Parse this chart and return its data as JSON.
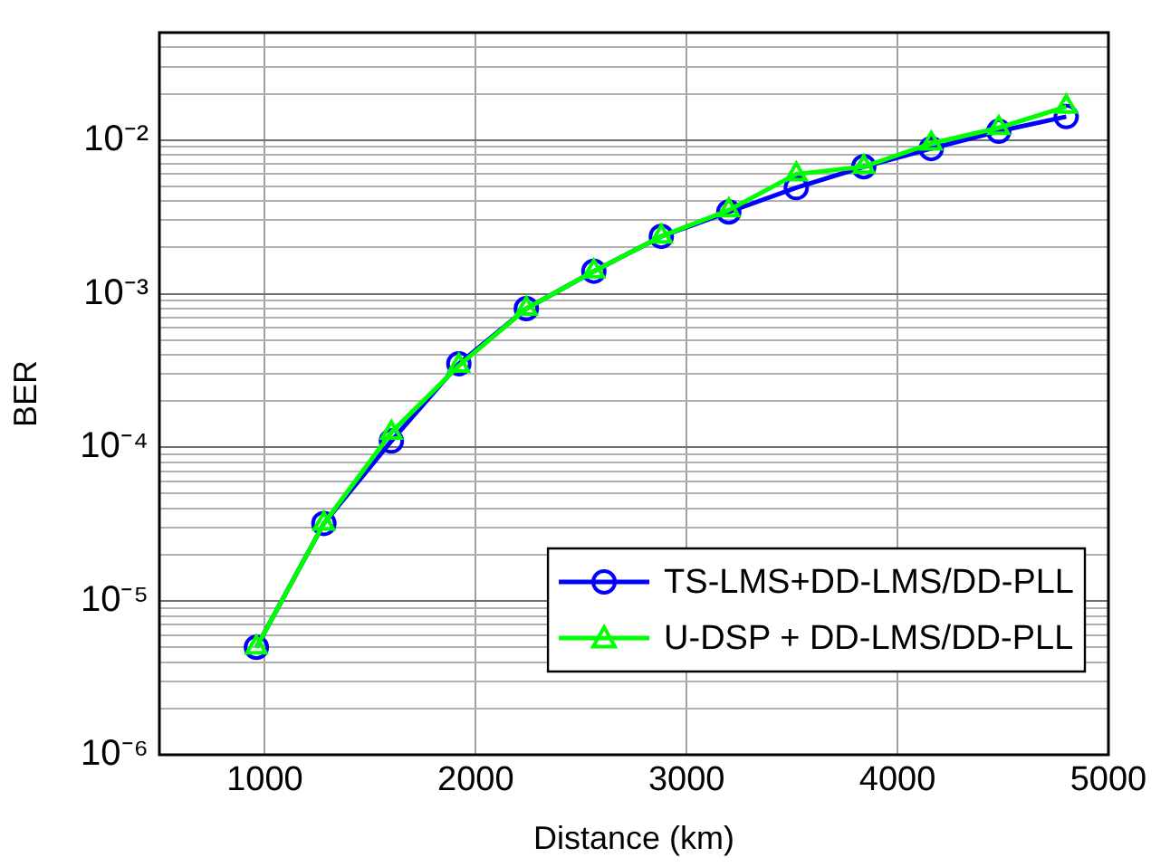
{
  "chart_data": {
    "type": "line",
    "xlabel": "Distance (km)",
    "ylabel": "BER",
    "x": [
      960,
      1280,
      1600,
      1920,
      2240,
      2560,
      2880,
      3200,
      3520,
      3840,
      4160,
      4480,
      4800
    ],
    "series": [
      {
        "name": "TS-LMS+DD-LMS/DD-PLL",
        "color": "#0000ff",
        "marker": "circle",
        "values": [
          5e-06,
          3.2e-05,
          0.00011,
          0.00035,
          0.0008,
          0.0014,
          0.00236,
          0.0034,
          0.0049,
          0.0067,
          0.0088,
          0.0114,
          0.0142
        ]
      },
      {
        "name": "U-DSP + DD-LMS/DD-PLL",
        "color": "#00ff00",
        "marker": "triangle",
        "values": [
          5e-06,
          3.2e-05,
          0.000125,
          0.00034,
          0.0008,
          0.0014,
          0.00236,
          0.0035,
          0.006,
          0.0067,
          0.0095,
          0.012,
          0.0165
        ]
      }
    ],
    "xlim": [
      500,
      5000
    ],
    "xticks": [
      1000,
      2000,
      3000,
      4000,
      5000
    ],
    "ylim": [
      1e-06,
      0.05
    ],
    "log": "y",
    "yticks": [
      {
        "value": 1e-06,
        "label": "10⁻⁶"
      },
      {
        "value": 2e-06,
        "label": null
      },
      {
        "value": 3e-06,
        "label": null
      },
      {
        "value": 4e-06,
        "label": null
      },
      {
        "value": 5e-06,
        "label": null
      },
      {
        "value": 6e-06,
        "label": null
      },
      {
        "value": 7e-06,
        "label": null
      },
      {
        "value": 8e-06,
        "label": null
      },
      {
        "value": 9e-06,
        "label": null
      },
      {
        "value": 1e-05,
        "label": "10⁻⁵"
      },
      {
        "value": 2e-05,
        "label": null
      },
      {
        "value": 3e-05,
        "label": null
      },
      {
        "value": 4e-05,
        "label": null
      },
      {
        "value": 5e-05,
        "label": null
      },
      {
        "value": 6e-05,
        "label": null
      },
      {
        "value": 7e-05,
        "label": null
      },
      {
        "value": 8e-05,
        "label": null
      },
      {
        "value": 9e-05,
        "label": null
      },
      {
        "value": 0.0001,
        "label": "10⁻⁴"
      },
      {
        "value": 0.0002,
        "label": null
      },
      {
        "value": 0.0003,
        "label": null
      },
      {
        "value": 0.0004,
        "label": null
      },
      {
        "value": 0.0005,
        "label": null
      },
      {
        "value": 0.0006,
        "label": null
      },
      {
        "value": 0.0007,
        "label": null
      },
      {
        "value": 0.0008,
        "label": null
      },
      {
        "value": 0.0009,
        "label": null
      },
      {
        "value": 0.001,
        "label": "10⁻³"
      },
      {
        "value": 0.002,
        "label": null
      },
      {
        "value": 0.003,
        "label": null
      },
      {
        "value": 0.004,
        "label": null
      },
      {
        "value": 0.005,
        "label": null
      },
      {
        "value": 0.006,
        "label": null
      },
      {
        "value": 0.007,
        "label": null
      },
      {
        "value": 0.008,
        "label": null
      },
      {
        "value": 0.009,
        "label": null
      },
      {
        "value": 0.01,
        "label": "10⁻²"
      },
      {
        "value": 0.02,
        "label": null
      },
      {
        "value": 0.03,
        "label": null
      },
      {
        "value": 0.04,
        "label": null
      },
      {
        "value": 0.05,
        "label": null
      }
    ],
    "grid": true,
    "legend": "bottom right",
    "line_style": "solid"
  }
}
